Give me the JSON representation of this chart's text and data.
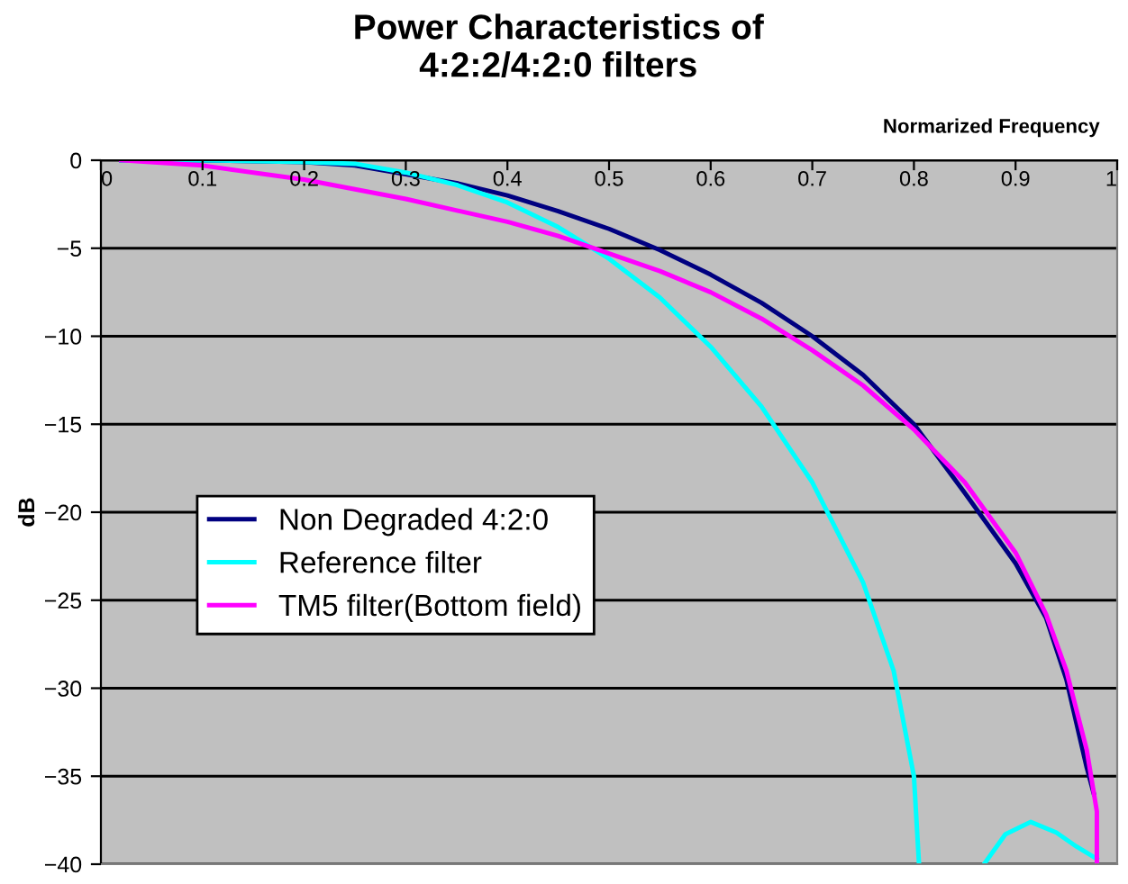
{
  "chart_data": {
    "type": "line",
    "title": "Power Characteristics of\n4:2:2/4:2:0 filters",
    "xlabel": "Normarized Frequency",
    "ylabel": "dB",
    "xlim": [
      0,
      1
    ],
    "ylim": [
      -40,
      0
    ],
    "xticks": [
      0,
      0.1,
      0.2,
      0.3,
      0.4,
      0.5,
      0.6,
      0.7,
      0.8,
      0.9,
      1
    ],
    "yticks": [
      -40,
      -35,
      -30,
      -25,
      -20,
      -15,
      -10,
      -5,
      0
    ],
    "grid": "y",
    "legend": "left",
    "marker": "none",
    "line_style": "solid",
    "series": [
      {
        "name": "Non Degraded 4:2:0",
        "color": "#000080",
        "x": [
          0.02,
          0.1,
          0.2,
          0.25,
          0.3,
          0.35,
          0.4,
          0.45,
          0.5,
          0.55,
          0.6,
          0.65,
          0.7,
          0.75,
          0.8,
          0.85,
          0.9,
          0.93,
          0.95,
          0.96,
          0.97,
          0.977
        ],
        "values": [
          0,
          0,
          -0.1,
          -0.3,
          -0.8,
          -1.3,
          -2.0,
          -2.9,
          -3.9,
          -5.1,
          -6.5,
          -8.1,
          -10.0,
          -12.2,
          -15.0,
          -18.9,
          -22.9,
          -26,
          -29.5,
          -32,
          -34.5,
          -36
        ]
      },
      {
        "name": "Reference filter",
        "color": "#00ffff",
        "x": [
          0.02,
          0.1,
          0.2,
          0.25,
          0.3,
          0.35,
          0.4,
          0.45,
          0.5,
          0.55,
          0.6,
          0.65,
          0.7,
          0.75,
          0.78,
          0.8,
          0.805,
          null,
          0.869,
          0.89,
          0.915,
          0.94,
          0.96,
          0.98
        ],
        "values": [
          0,
          0,
          -0.1,
          -0.2,
          -0.7,
          -1.4,
          -2.4,
          -3.8,
          -5.6,
          -7.8,
          -10.6,
          -14.0,
          -18.3,
          -24,
          -29,
          -35,
          -40,
          null,
          -40,
          -38.3,
          -37.6,
          -38.2,
          -39,
          -39.7
        ]
      },
      {
        "name": "TM5 filter(Bottom field)",
        "color": "#ff00ff",
        "x": [
          0.02,
          0.1,
          0.2,
          0.3,
          0.4,
          0.45,
          0.5,
          0.55,
          0.6,
          0.65,
          0.7,
          0.75,
          0.8,
          0.85,
          0.9,
          0.93,
          0.95,
          0.97,
          0.98,
          0.98
        ],
        "values": [
          0,
          -0.3,
          -1.1,
          -2.2,
          -3.5,
          -4.3,
          -5.3,
          -6.3,
          -7.5,
          -9.0,
          -10.8,
          -12.8,
          -15.3,
          -18.3,
          -22.3,
          -25.8,
          -29,
          -33.5,
          -37,
          -40
        ]
      }
    ]
  }
}
